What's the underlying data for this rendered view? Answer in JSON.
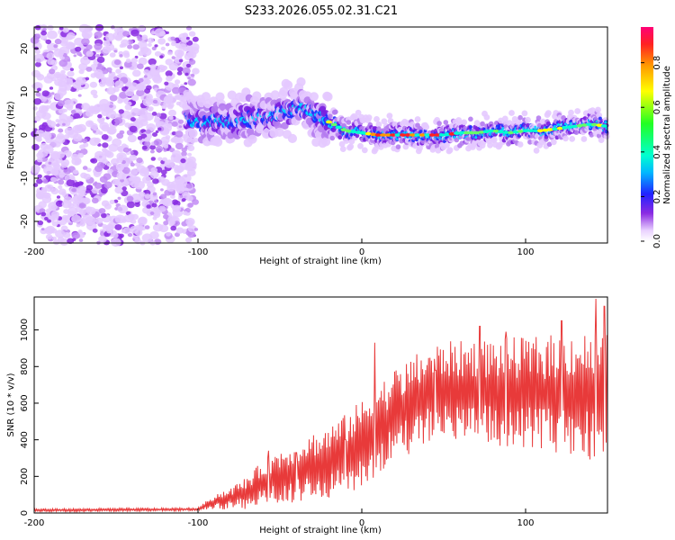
{
  "chart_data": [
    {
      "type": "heatmap",
      "title": "S233.2026.055.02.31.C21",
      "xlabel": "Height of straight line (km)",
      "ylabel": "Frequency (Hz)",
      "xlim": [
        -200,
        150
      ],
      "ylim": [
        -25,
        25
      ],
      "xticks": [
        -200,
        -100,
        0,
        100
      ],
      "yticks": [
        -20,
        -10,
        0,
        10,
        20
      ],
      "noise_region_x": [
        -200,
        -100
      ],
      "ridge": {
        "x": [
          -107,
          -100,
          -90,
          -80,
          -70,
          -60,
          -50,
          -40,
          -30,
          -20,
          -10,
          0,
          10,
          20,
          30,
          40,
          50,
          60,
          70,
          80,
          90,
          100,
          110,
          120,
          130,
          140,
          150
        ],
        "y": [
          4,
          3,
          3,
          3,
          4,
          4,
          5,
          6,
          5,
          3,
          1,
          0.5,
          0,
          0,
          0,
          0,
          0,
          0.5,
          0.5,
          1,
          0.5,
          1,
          1,
          1.5,
          2,
          2.5,
          2
        ]
      },
      "colorbar": {
        "label": "Normalized spectral amplitude",
        "ticks": [
          "0.0",
          "0.2",
          "0.4",
          "0.6",
          "0.8"
        ],
        "range": [
          0,
          0.96
        ]
      }
    },
    {
      "type": "line",
      "xlabel": "Height of straight line (km)",
      "ylabel": "SNR (10 * v/v)",
      "xlim": [
        -200,
        150
      ],
      "ylim": [
        0,
        1180
      ],
      "xticks": [
        -200,
        -100,
        0,
        100
      ],
      "yticks": [
        0,
        200,
        400,
        600,
        800,
        1000
      ],
      "series": [
        {
          "name": "SNR",
          "color": "#e83a3a",
          "envelope_x": [
            -200,
            -100,
            -95,
            -90,
            -80,
            -70,
            -60,
            -50,
            -40,
            -30,
            -20,
            -10,
            0,
            10,
            20,
            30,
            40,
            50,
            60,
            70,
            80,
            90,
            100,
            110,
            120,
            130,
            140,
            150
          ],
          "envelope_y": [
            15,
            20,
            40,
            60,
            80,
            110,
            170,
            200,
            230,
            260,
            280,
            320,
            380,
            460,
            530,
            590,
            650,
            670,
            670,
            670,
            660,
            660,
            660,
            650,
            650,
            650,
            640,
            640
          ],
          "noise_amplitude": [
            8,
            8,
            25,
            45,
            60,
            90,
            120,
            150,
            170,
            180,
            200,
            220,
            240,
            250,
            260,
            260,
            260,
            270,
            270,
            280,
            290,
            300,
            300,
            320,
            330,
            350,
            350,
            350
          ],
          "peaks": [
            [
              -57,
              340
            ],
            [
              -40,
              330
            ],
            [
              -25,
              350
            ],
            [
              -10,
              400
            ],
            [
              8,
              930
            ],
            [
              45,
              780
            ],
            [
              72,
              1020
            ],
            [
              88,
              990
            ],
            [
              122,
              1050
            ],
            [
              143,
              1170
            ],
            [
              148,
              1130
            ]
          ]
        }
      ]
    }
  ]
}
